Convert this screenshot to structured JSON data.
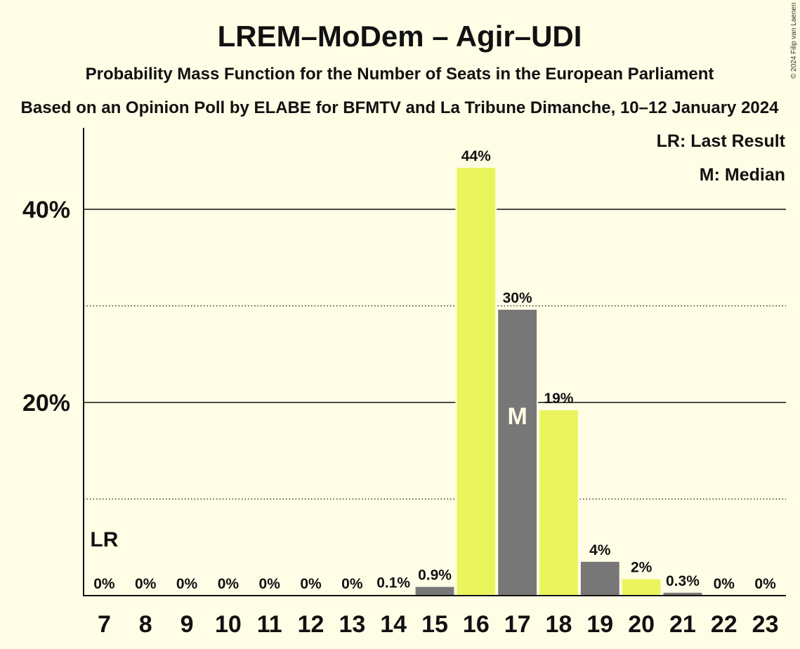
{
  "title": "LREM–MoDem – Agir–UDI",
  "subtitle1": "Probability Mass Function for the Number of Seats in the European Parliament",
  "subtitle2": "Based on an Opinion Poll by ELABE for BFMTV and La Tribune Dimanche, 10–12 January 2024",
  "copyright": "© 2024 Filip van Laenen",
  "legend": {
    "last_result": "LR: Last Result",
    "median": "M: Median"
  },
  "markers": {
    "last_result": "LR",
    "median": "M",
    "last_result_seat": 7,
    "median_seat": 17
  },
  "colors": {
    "primary": "#EAF55E",
    "secondary": "#777777",
    "background": "#FFFDE6"
  },
  "chart_data": {
    "type": "bar",
    "categories": [
      "7",
      "8",
      "9",
      "10",
      "11",
      "12",
      "13",
      "14",
      "15",
      "16",
      "17",
      "18",
      "19",
      "20",
      "21",
      "22",
      "23"
    ],
    "values": [
      0,
      0,
      0,
      0,
      0,
      0,
      0,
      0.1,
      0.9,
      44.3,
      29.6,
      19.2,
      3.5,
      1.7,
      0.3,
      0,
      0
    ],
    "data_labels": [
      "0%",
      "0%",
      "0%",
      "0%",
      "0%",
      "0%",
      "0%",
      "0.1%",
      "0.9%",
      "44%",
      "30%",
      "19%",
      "4%",
      "2%",
      "0.3%",
      "0%",
      "0%"
    ],
    "y_ticks": [
      {
        "value": 20,
        "label": "20%"
      },
      {
        "value": 40,
        "label": "40%"
      }
    ],
    "y_minor_gridlines": [
      10,
      30
    ],
    "ylim": [
      0,
      48
    ],
    "grid": true,
    "legend_position": "top-right",
    "xlabel": "",
    "ylabel": ""
  }
}
